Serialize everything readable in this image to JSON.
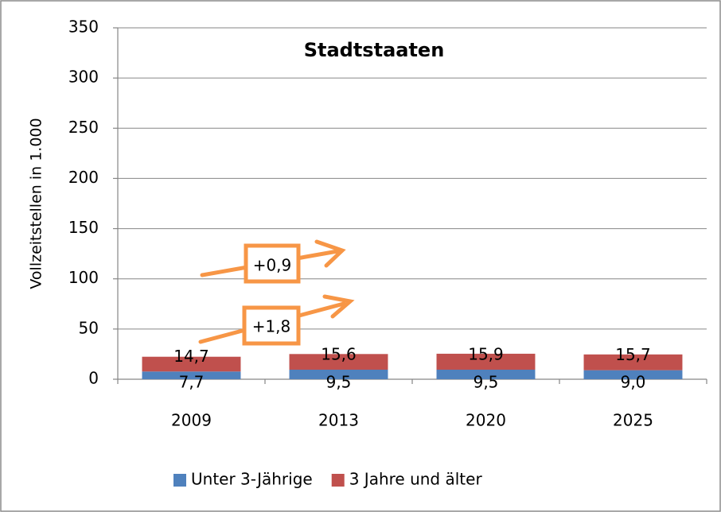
{
  "chart_data": {
    "type": "bar",
    "stacked": true,
    "title": "Stadtstaaten",
    "y_label": "Vollzeitstellen in 1.000",
    "categories": [
      "2009",
      "2013",
      "2020",
      "2025"
    ],
    "series": [
      {
        "name": "Unter 3-Jährige",
        "color": "#4f81bd",
        "values": [
          7.7,
          9.5,
          9.5,
          9.0
        ],
        "value_labels": [
          "7,7",
          "9,5",
          "9,5",
          "9,0"
        ]
      },
      {
        "name": "3 Jahre und älter",
        "color": "#c0504d",
        "values": [
          14.7,
          15.6,
          15.9,
          15.7
        ],
        "value_labels": [
          "14,7",
          "15,6",
          "15,9",
          "15,7"
        ]
      }
    ],
    "annotations": [
      "+1,8",
      "+0,9"
    ],
    "ylim": [
      0,
      350
    ],
    "yticks": [
      0,
      50,
      100,
      150,
      200,
      250,
      300,
      350
    ],
    "grid": true
  }
}
